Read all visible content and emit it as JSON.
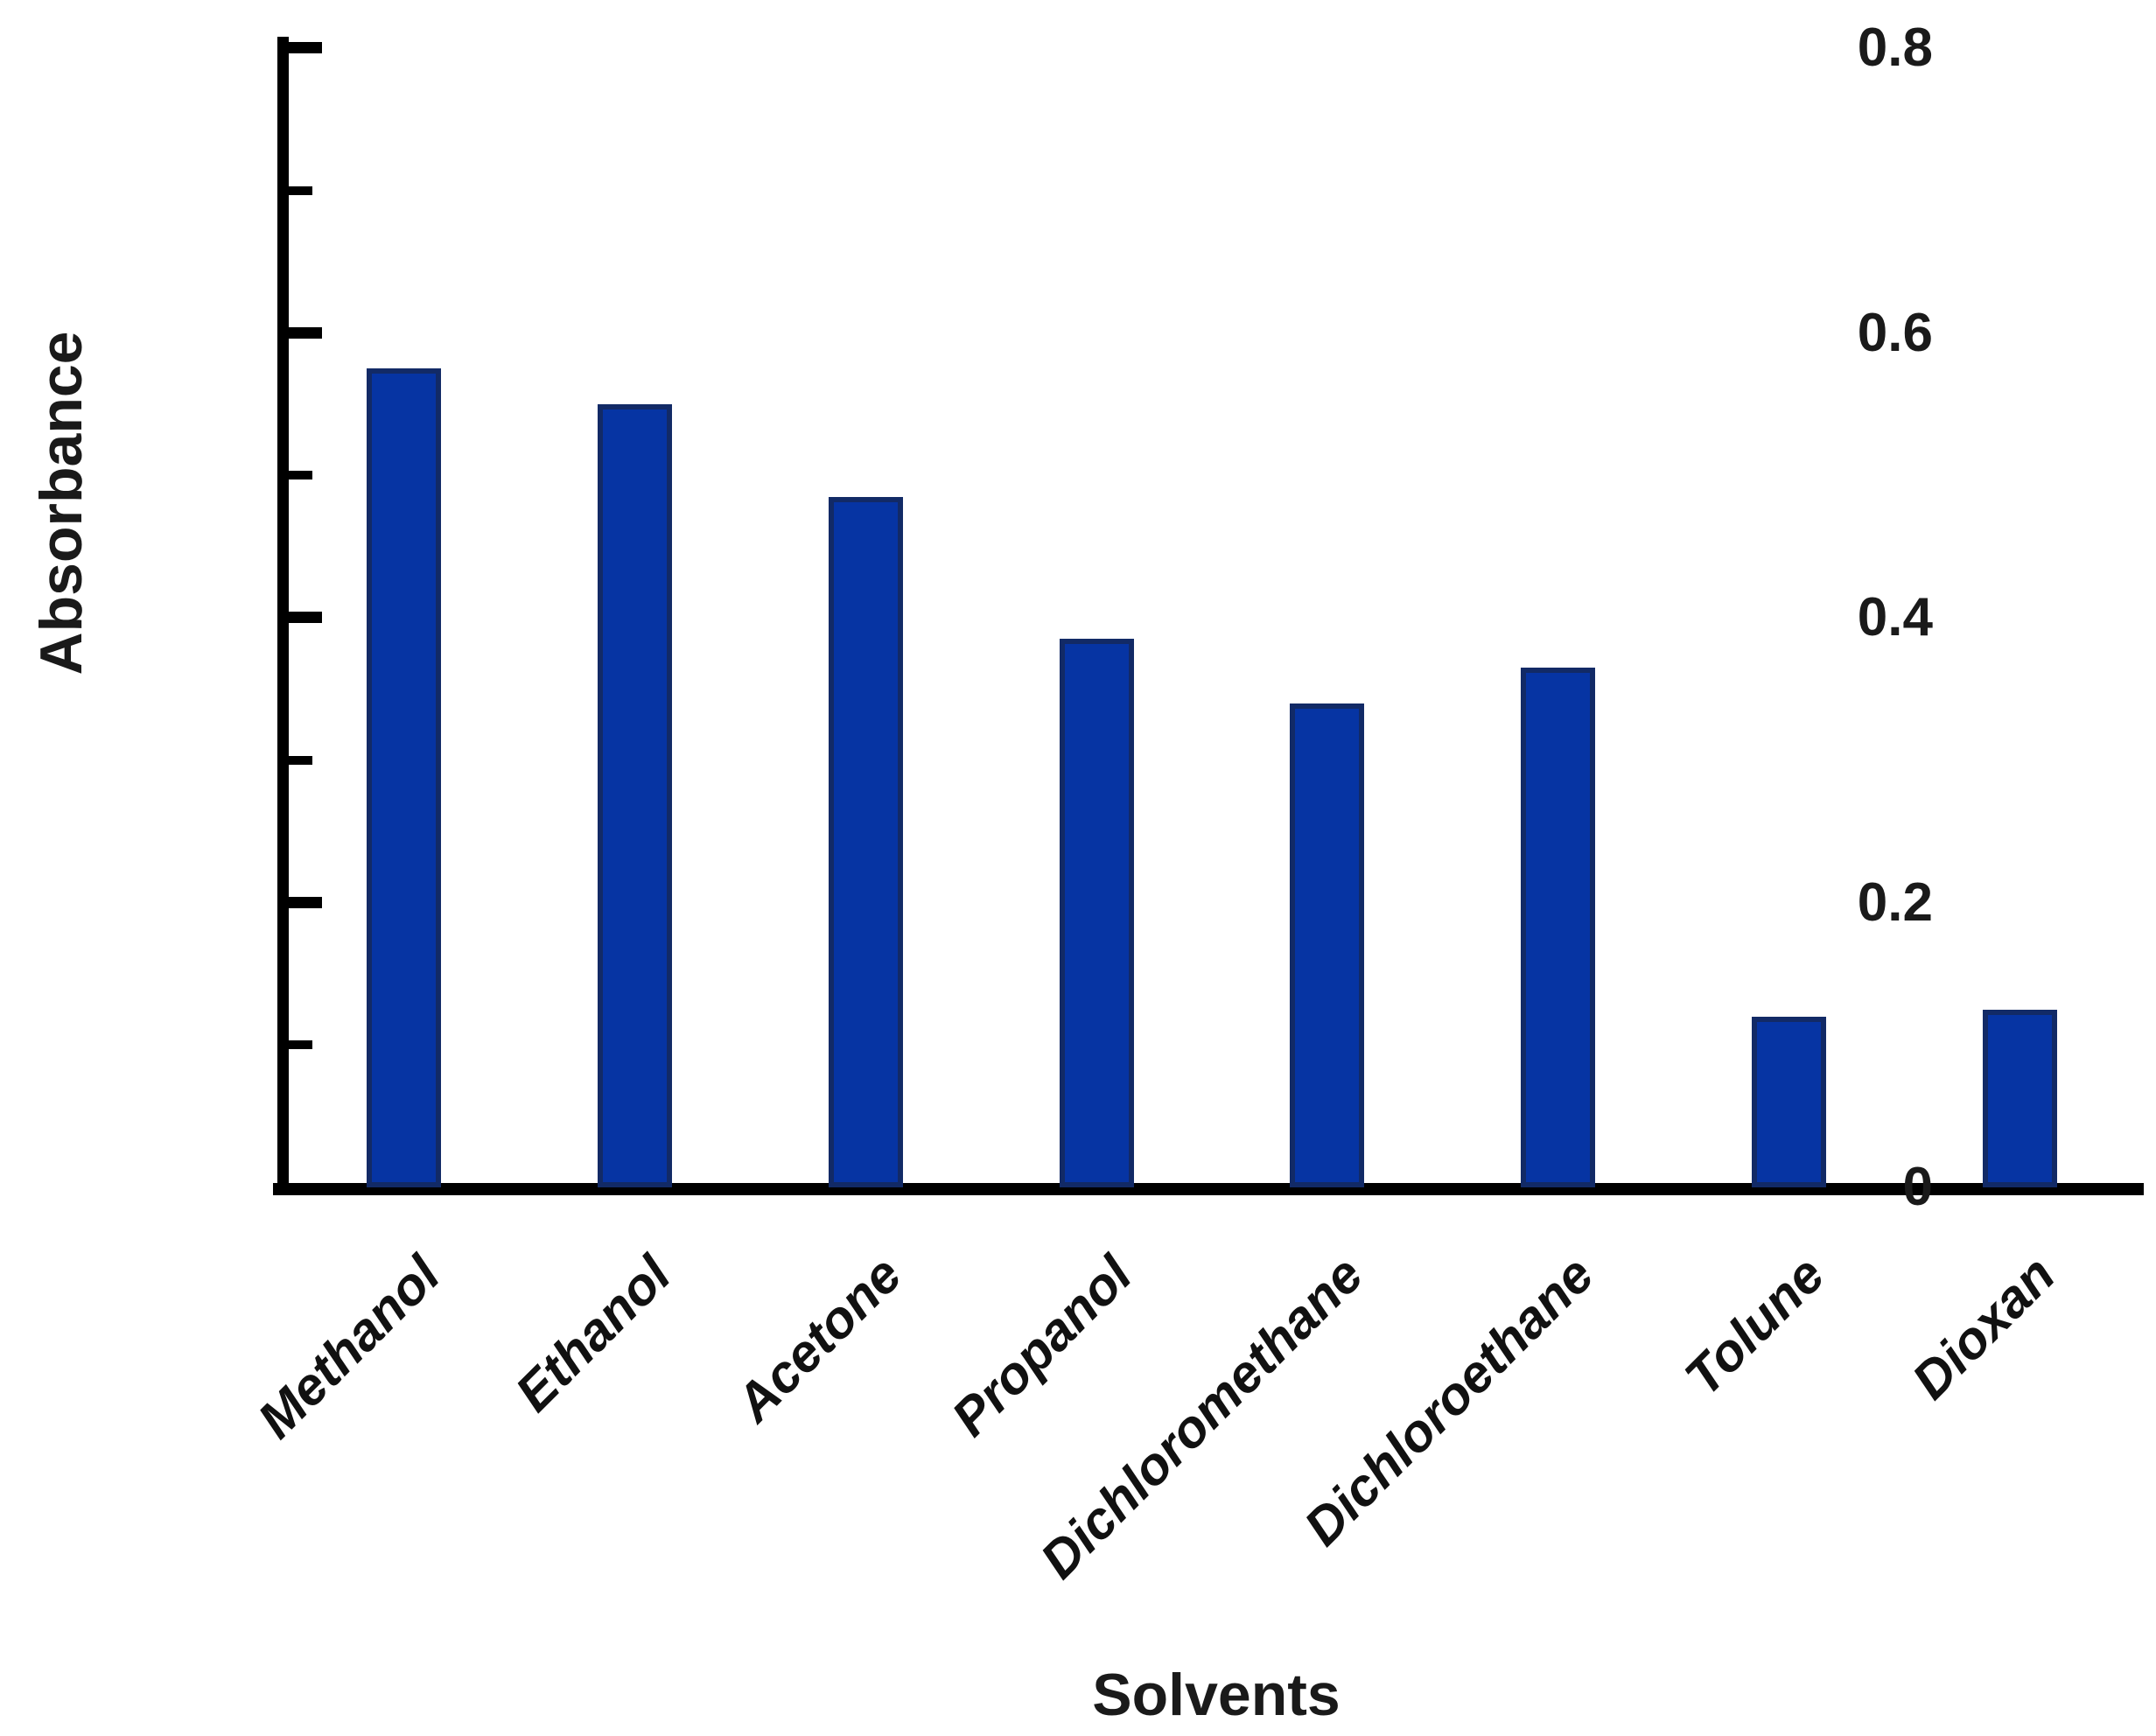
{
  "chart_data": {
    "type": "bar",
    "title": "",
    "xlabel": "Solvents",
    "ylabel": "Absorbance",
    "categories": [
      "Methanol",
      "Ethanol",
      "Acetone",
      "Propanol",
      "Dichloromethane",
      "Dichloroethane",
      "Tolune",
      "Dioxan"
    ],
    "values": [
      0.575,
      0.55,
      0.485,
      0.385,
      0.34,
      0.365,
      0.12,
      0.125
    ],
    "ylim": [
      0,
      0.8
    ],
    "ytick_labels": [
      "0",
      "0.2",
      "0.4",
      "0.6",
      "0.8"
    ],
    "ytick_interval": 0.2,
    "minor_tick_interval": 0.1,
    "grid": false,
    "legend": null,
    "bar_fill_color": "#0634a3",
    "bar_border_color": "#122a66",
    "axis_color": "#000000",
    "background_color": "#ffffff"
  }
}
